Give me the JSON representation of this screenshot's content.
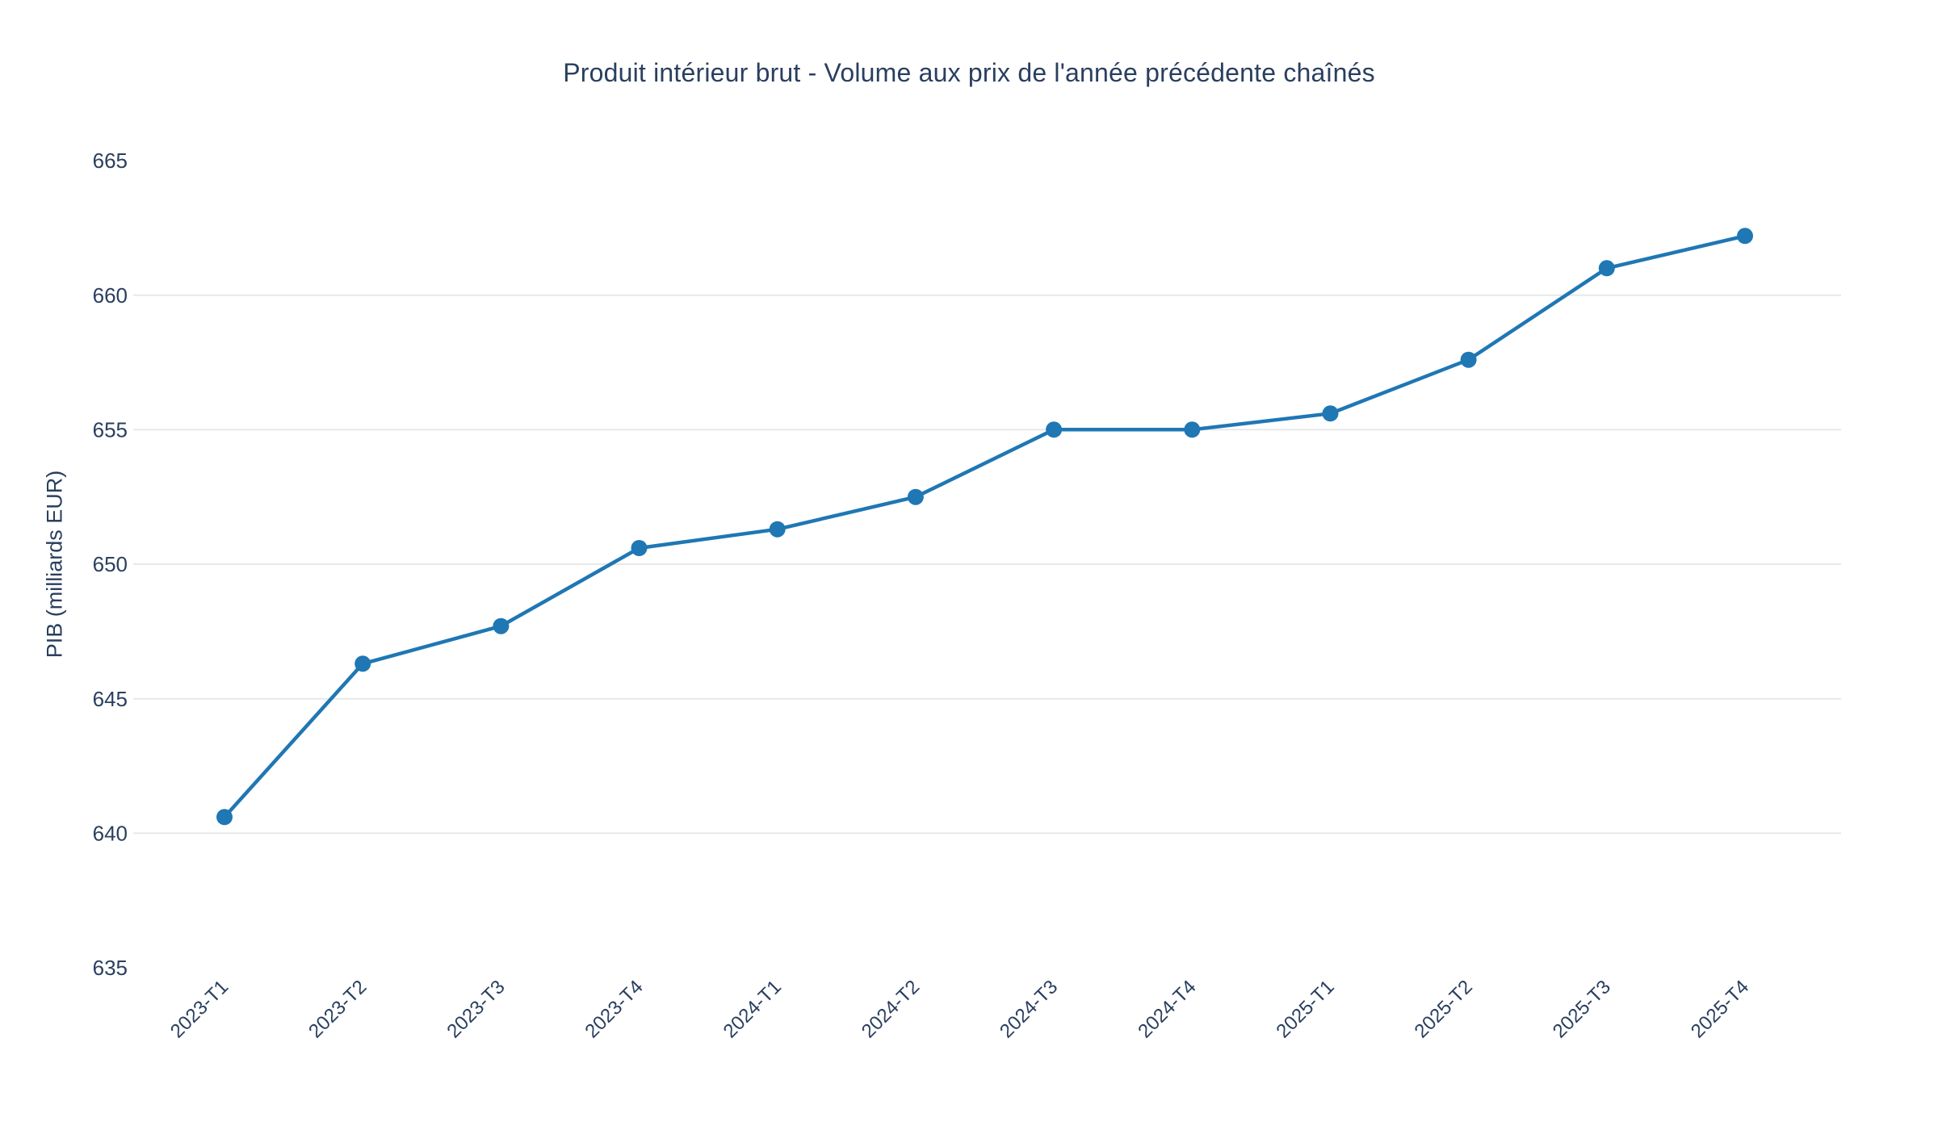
{
  "chart_data": {
    "type": "line",
    "title": "Produit intérieur brut - Volume aux prix de l'année précédente chaînés",
    "xlabel": "",
    "ylabel": "PIB (milliards EUR)",
    "categories": [
      "2023-T1",
      "2023-T2",
      "2023-T3",
      "2023-T4",
      "2024-T1",
      "2024-T2",
      "2024-T3",
      "2024-T4",
      "2025-T1",
      "2025-T2",
      "2025-T3",
      "2025-T4"
    ],
    "values": [
      640.6,
      646.3,
      647.7,
      650.6,
      651.3,
      652.5,
      655.0,
      655.0,
      655.6,
      657.6,
      661.0,
      662.2
    ],
    "ylim": [
      635,
      665
    ],
    "yticks": [
      635,
      640,
      645,
      650,
      655,
      660,
      665
    ],
    "grid_ticks": [
      640,
      645,
      650,
      655,
      660
    ],
    "x_tick_angle": -45,
    "legend_position": "none",
    "grid": "horizontal",
    "colors": {
      "line": "#1f77b4",
      "marker": "#1f77b4",
      "grid": "#e8e8e8",
      "text": "#2a3f5f",
      "background": "#ffffff"
    }
  }
}
